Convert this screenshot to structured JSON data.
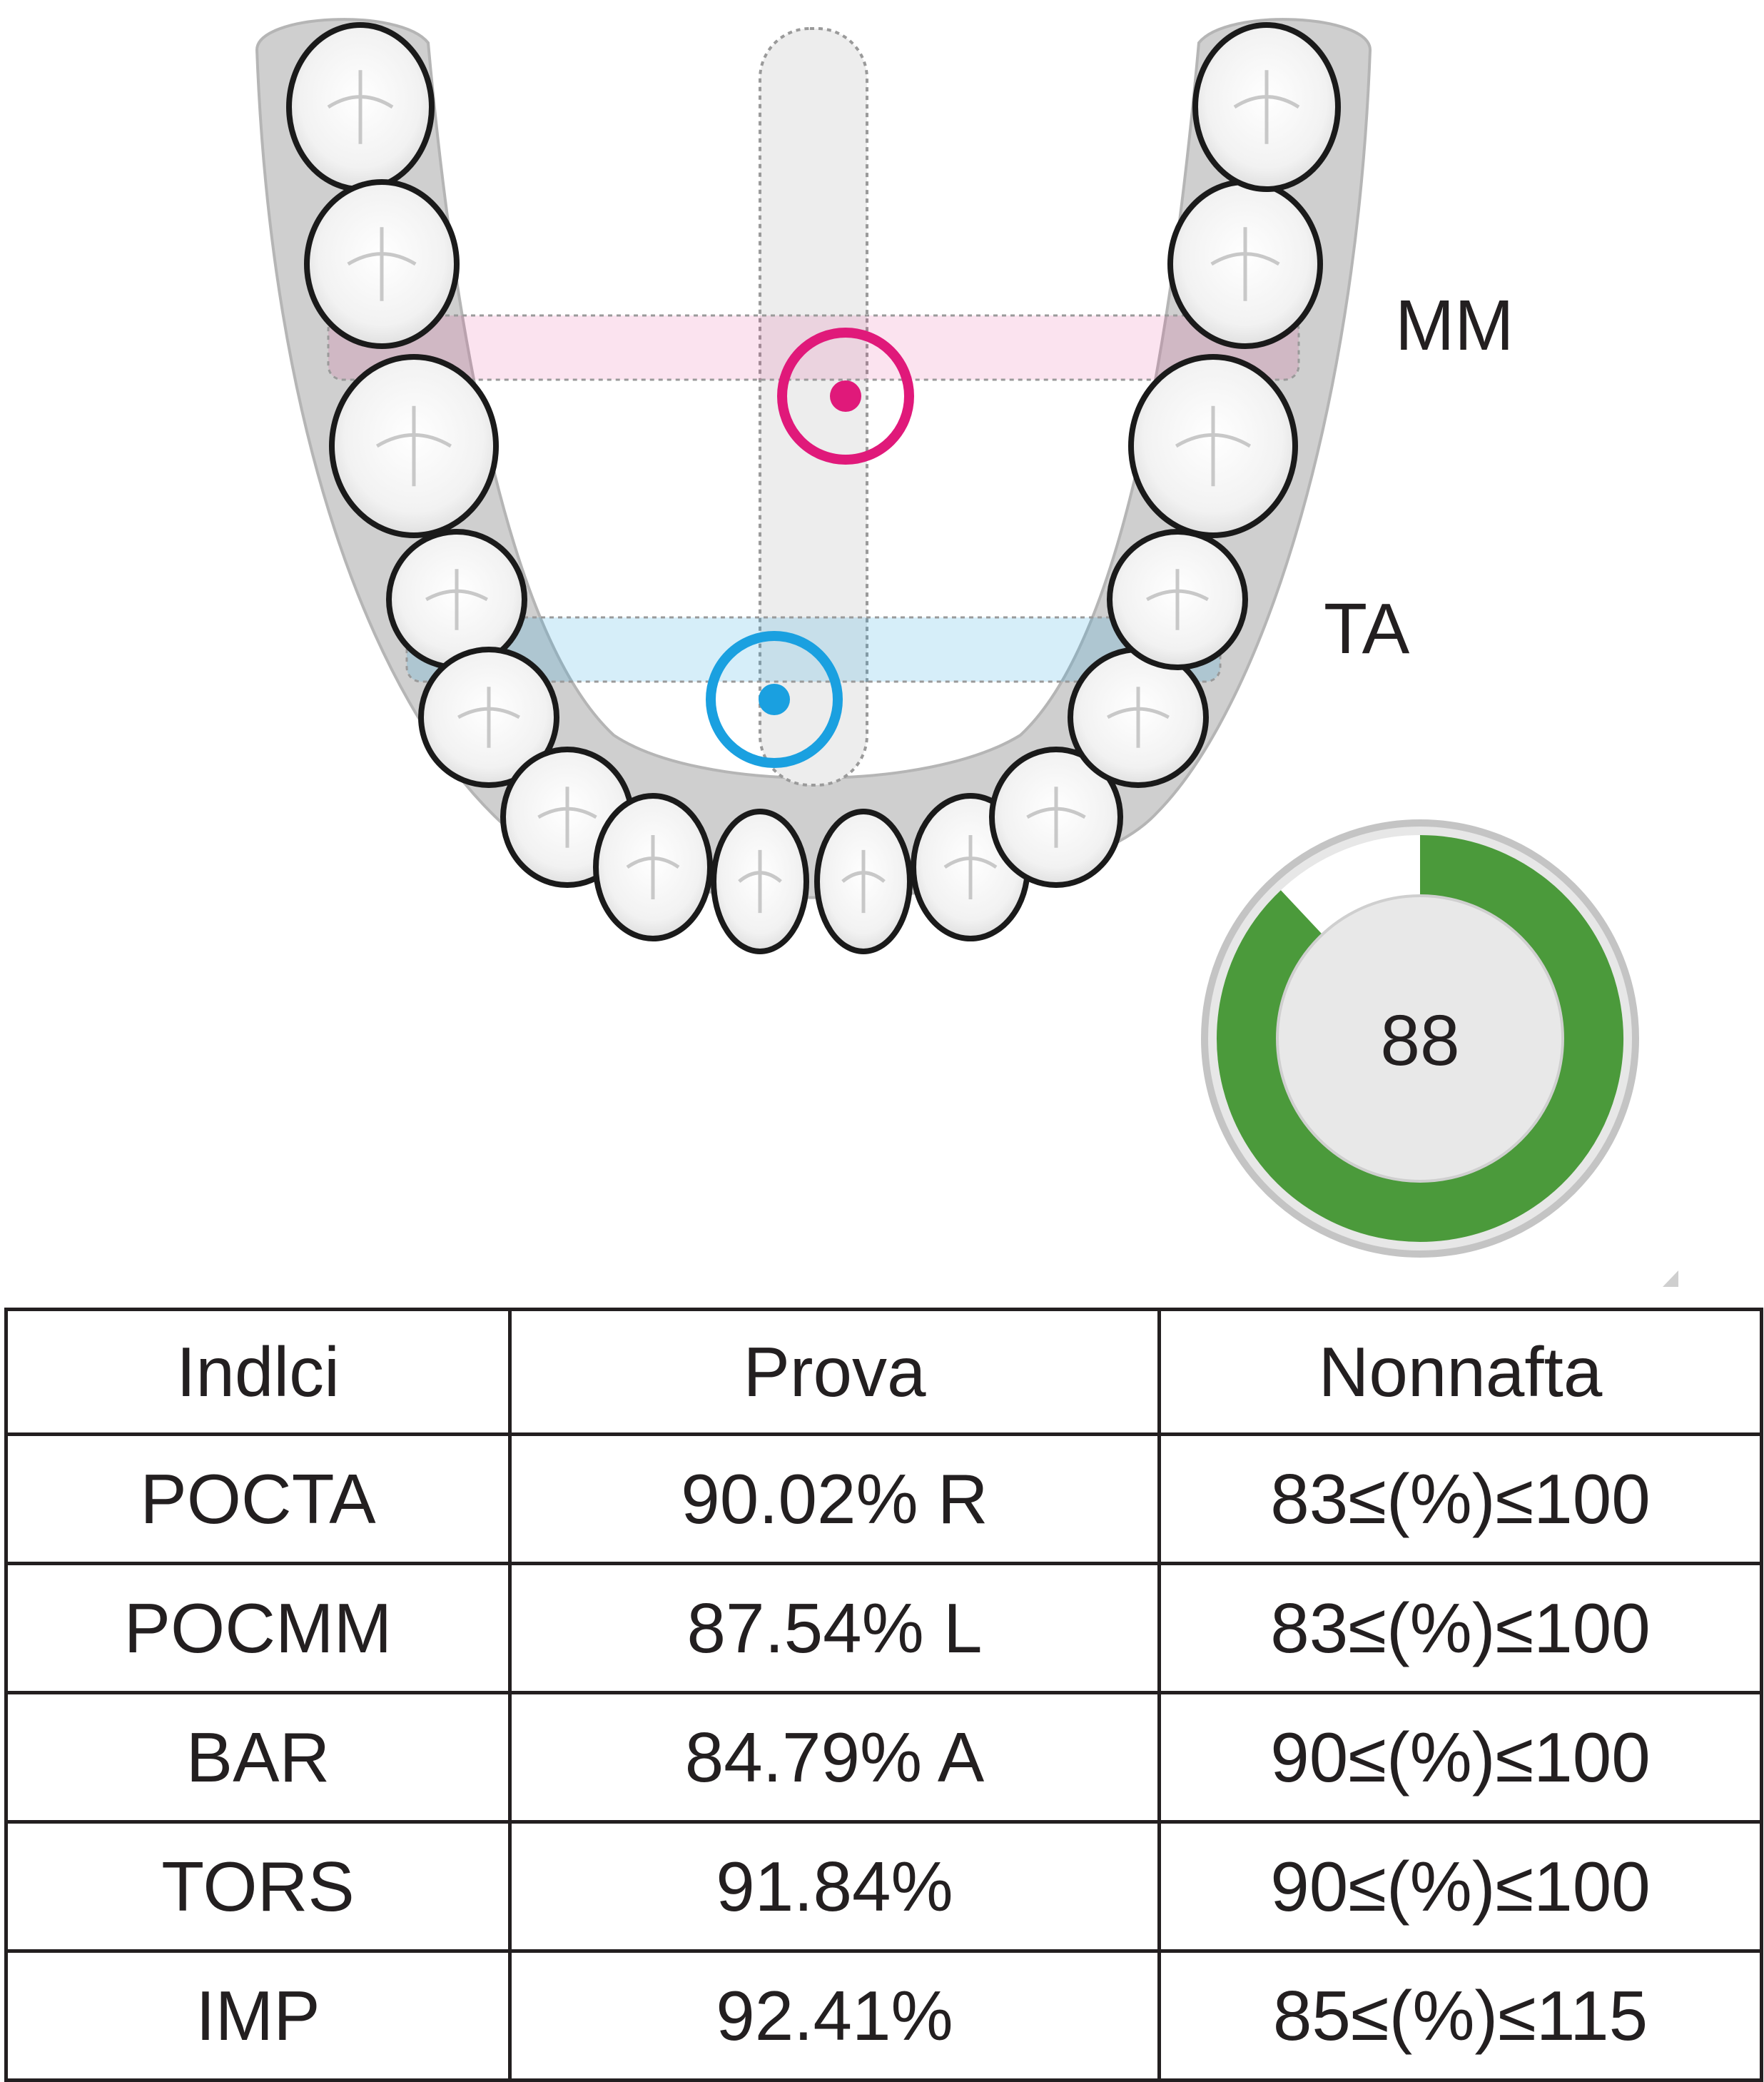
{
  "diagram": {
    "labels": {
      "mm": "MM",
      "ta": "TA"
    },
    "colors": {
      "mm": "#e0197a",
      "ta": "#1aa0e0",
      "gauge": "#4b9a3b",
      "arch": "#cfcfcf"
    }
  },
  "gauge": {
    "value": "88",
    "fraction": 0.88
  },
  "table": {
    "headers": [
      "Indlci",
      "Prova",
      "Nonnafta"
    ],
    "rows": [
      [
        "POCTA",
        "90.02% R",
        "83≤(%)≤100"
      ],
      [
        "POCMM",
        "87.54% L",
        "83≤(%)≤100"
      ],
      [
        "BAR",
        "84.79% A",
        "90≤(%)≤100"
      ],
      [
        "TORS",
        "91.84%",
        "90≤(%)≤100"
      ],
      [
        "IMP",
        "92.41%",
        "85≤(%)≤115"
      ]
    ]
  }
}
